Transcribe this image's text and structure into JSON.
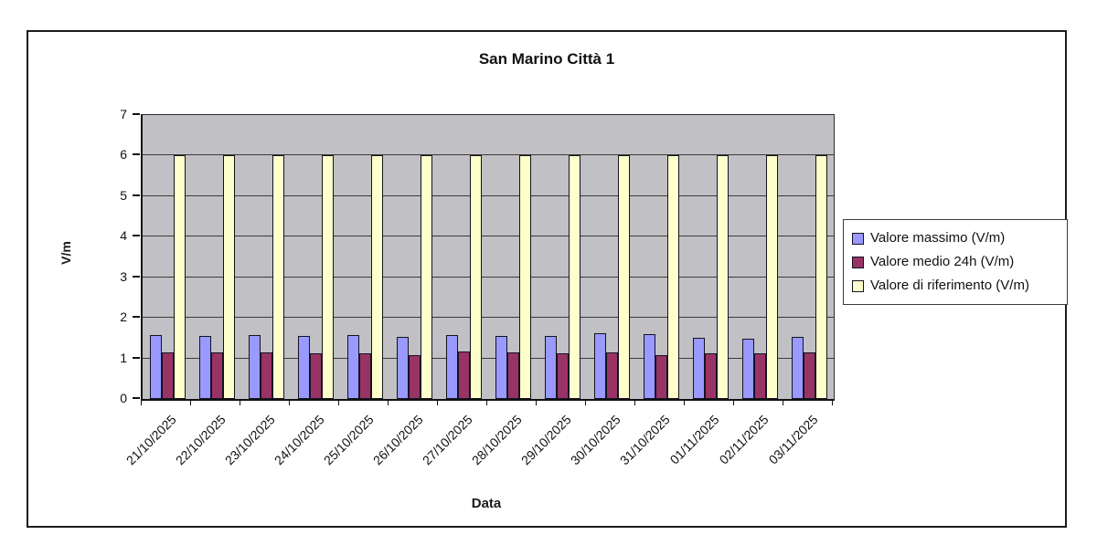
{
  "chart_data": {
    "type": "bar",
    "title": "San Marino Città 1",
    "xlabel": "Data",
    "ylabel": "V/m",
    "ylim": [
      0,
      7
    ],
    "y_ticks": [
      0,
      1,
      2,
      3,
      4,
      5,
      6,
      7
    ],
    "grid": "horizontal",
    "legend_position": "right",
    "plot_bg_color": "#c1c1c5",
    "categories": [
      "21/10/2025",
      "22/10/2025",
      "23/10/2025",
      "24/10/2025",
      "25/10/2025",
      "26/10/2025",
      "27/10/2025",
      "28/10/2025",
      "29/10/2025",
      "30/10/2025",
      "31/10/2025",
      "01/11/2025",
      "02/11/2025",
      "03/11/2025"
    ],
    "series": [
      {
        "name": "Valore massimo (V/m)",
        "color": "#9999FF",
        "values": [
          1.58,
          1.56,
          1.57,
          1.56,
          1.58,
          1.54,
          1.58,
          1.55,
          1.56,
          1.61,
          1.6,
          1.5,
          1.49,
          1.54
        ]
      },
      {
        "name": "Valore medio 24h (V/m)",
        "color": "#993366",
        "values": [
          1.14,
          1.14,
          1.14,
          1.13,
          1.13,
          1.08,
          1.16,
          1.15,
          1.12,
          1.14,
          1.09,
          1.12,
          1.12,
          1.14
        ]
      },
      {
        "name": "Valore di riferimento (V/m)",
        "color": "#FFFFCC",
        "values": [
          6,
          6,
          6,
          6,
          6,
          6,
          6,
          6,
          6,
          6,
          6,
          6,
          6,
          6
        ]
      }
    ]
  }
}
